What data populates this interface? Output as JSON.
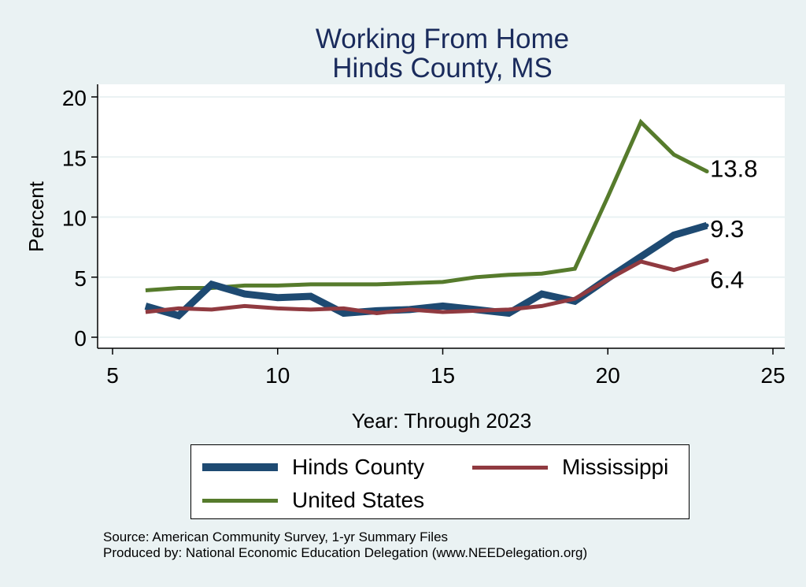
{
  "chart_data": {
    "type": "line",
    "title": "Working From Home",
    "subtitle": "Hinds County, MS",
    "xlabel": "Year: Through 2023",
    "ylabel": "Percent",
    "xlim": [
      5,
      25
    ],
    "ylim": [
      0,
      20
    ],
    "xticks": [
      5,
      10,
      15,
      20,
      25
    ],
    "yticks": [
      0,
      5,
      10,
      15,
      20
    ],
    "grid": "horizontal",
    "legend_position": "bottom",
    "x": [
      6,
      7,
      8,
      9,
      10,
      11,
      12,
      13,
      14,
      15,
      16,
      17,
      18,
      19,
      20,
      21,
      22,
      23
    ],
    "series": [
      {
        "name": "Hinds County",
        "color": "#1e4a72",
        "width": 9,
        "values": [
          2.6,
          1.8,
          4.4,
          3.6,
          3.3,
          3.4,
          2.0,
          2.2,
          2.3,
          2.6,
          2.3,
          2.0,
          3.6,
          3.0,
          4.9,
          6.7,
          8.5,
          9.3
        ],
        "end_label": "9.3"
      },
      {
        "name": "Mississippi",
        "color": "#903a40",
        "width": 5,
        "values": [
          2.1,
          2.4,
          2.3,
          2.6,
          2.4,
          2.3,
          2.4,
          2.0,
          2.3,
          2.1,
          2.2,
          2.3,
          2.6,
          3.2,
          4.8,
          6.3,
          5.6,
          6.4
        ],
        "end_label": "6.4"
      },
      {
        "name": "United States",
        "color": "#567b2c",
        "width": 5,
        "values": [
          3.9,
          4.1,
          4.1,
          4.3,
          4.3,
          4.4,
          4.4,
          4.4,
          4.5,
          4.6,
          5.0,
          5.2,
          5.3,
          5.7,
          11.7,
          17.9,
          15.2,
          13.8
        ],
        "end_label": "13.8"
      }
    ]
  },
  "legend": {
    "items": [
      "Hinds County",
      "Mississippi",
      "United States"
    ]
  },
  "source": {
    "line1": "Source: American Community Survey, 1-yr Summary Files",
    "line2": "Produced by: National Economic Education Delegation (www.NEEDelegation.org)"
  }
}
